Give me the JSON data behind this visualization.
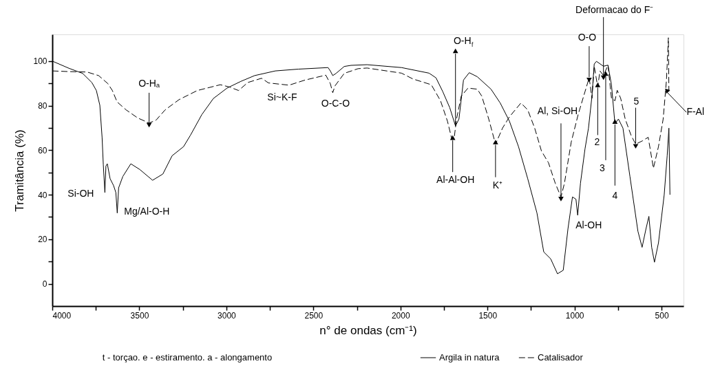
{
  "chart_data": {
    "type": "line",
    "xlabel": "n° de ondas (cm⁻¹)",
    "ylabel": "Tramitância (%)",
    "xlim": [
      4000,
      374
    ],
    "ylim": [
      -10,
      112
    ],
    "xticks": [
      4000,
      {
        "value": 3750,
        "label": null
      },
      3500,
      {
        "value": 3250,
        "label": null
      },
      3000,
      {
        "value": 2750,
        "label": null
      },
      2500,
      {
        "value": 2250,
        "label": null
      },
      2000,
      {
        "value": 1750,
        "label": null
      },
      1500,
      {
        "value": 1250,
        "label": null
      },
      1000,
      {
        "value": 750,
        "label": null
      },
      500
    ],
    "yticks": [
      0,
      {
        "value": 10,
        "label": null
      },
      20,
      {
        "value": 30,
        "label": null
      },
      40,
      {
        "value": 50,
        "label": null
      },
      60,
      {
        "value": 70,
        "label": null
      },
      80,
      {
        "value": 90,
        "label": null
      },
      100
    ],
    "grid": false,
    "legend": "bottom right",
    "marker": "none",
    "series": [
      {
        "name": "Argila in natura",
        "color": "#000000",
        "line_style": "solid",
        "x": [
          4000,
          3905,
          3826,
          3773,
          3747,
          3727,
          3714,
          3707,
          3698,
          3692,
          3684,
          3668,
          3648,
          3635,
          3627,
          3619,
          3595,
          3549,
          3497,
          3424,
          3365,
          3312,
          3246,
          3206,
          3141,
          3075,
          2996,
          2917,
          2838,
          2719,
          2587,
          2416,
          2403,
          2389,
          2370,
          2323,
          2284,
          2192,
          1994,
          1836,
          1796,
          1757,
          1717,
          1684,
          1664,
          1638,
          1605,
          1559,
          1480,
          1427,
          1374,
          1322,
          1269,
          1216,
          1177,
          1137,
          1098,
          1065,
          1038,
          1012,
          992,
          982,
          966,
          940,
          920,
          900,
          887,
          874,
          834,
          808,
          788,
          768,
          748,
          722,
          682,
          636,
          612,
          590,
          573,
          557,
          541,
          518,
          485,
          468,
          458,
          452
        ],
        "values": [
          100,
          96.8,
          94.5,
          90.4,
          86.8,
          80.2,
          65.7,
          53.4,
          41.0,
          52.9,
          53.9,
          47.2,
          44.1,
          41.0,
          31.8,
          43.1,
          48.2,
          53.9,
          51.3,
          46.5,
          49.3,
          57.5,
          61.6,
          66.8,
          76.0,
          83.2,
          87.9,
          90.9,
          93.5,
          95.6,
          96.4,
          97.1,
          95.6,
          93.5,
          94.5,
          97.6,
          98.1,
          98.4,
          97.1,
          94.6,
          92.5,
          86.3,
          79.1,
          70.9,
          74.0,
          91.5,
          94.8,
          93.0,
          87.4,
          81.2,
          73.0,
          61.6,
          47.2,
          31.8,
          14.3,
          11.2,
          4.5,
          6.1,
          24.6,
          39.0,
          38.0,
          30.8,
          45.2,
          60.6,
          69.9,
          84.3,
          98.7,
          99.9,
          97.7,
          98.2,
          89.4,
          71.9,
          74.0,
          69.9,
          48.3,
          23.6,
          16.4,
          24.6,
          30.3,
          16.4,
          9.7,
          18.4,
          40.0,
          57.5,
          69.9,
          40.0
        ]
      },
      {
        "name": "Catalisador",
        "color": "#000000",
        "line_style": "dashed",
        "x": [
          4000,
          3905,
          3800,
          3734,
          3681,
          3655,
          3628,
          3576,
          3510,
          3444,
          3404,
          3352,
          3272,
          3167,
          3035,
          2983,
          2930,
          2877,
          2798,
          2758,
          2640,
          2548,
          2429,
          2403,
          2389,
          2376,
          2323,
          2244,
          2192,
          1994,
          1929,
          1823,
          1770,
          1730,
          1704,
          1691,
          1678,
          1651,
          1612,
          1559,
          1533,
          1493,
          1454,
          1414,
          1374,
          1308,
          1269,
          1229,
          1190,
          1150,
          1111,
          1078,
          1058,
          1019,
          979,
          940,
          916,
          900,
          887,
          867,
          854,
          834,
          808,
          788,
          768,
          755,
          735,
          709,
          676,
          649,
          610,
          577,
          547,
          518,
          491,
          472,
          461,
          458
        ],
        "values": [
          95.6,
          95.3,
          95.1,
          93.5,
          89.9,
          86.8,
          81.7,
          78.1,
          74.5,
          72.2,
          73.5,
          78.1,
          82.7,
          86.8,
          89.4,
          88.4,
          86.8,
          90.4,
          92.3,
          90.2,
          89.2,
          91.5,
          93.7,
          89.9,
          85.8,
          88.9,
          94.5,
          96.6,
          96.9,
          94.6,
          92.0,
          89.4,
          82.2,
          73.0,
          64.7,
          65.8,
          74.0,
          84.3,
          87.9,
          87.4,
          84.3,
          74.0,
          62.7,
          69.9,
          75.0,
          81.2,
          78.1,
          69.9,
          59.6,
          54.4,
          45.2,
          39.0,
          45.2,
          63.7,
          76.1,
          86.3,
          92.5,
          83.3,
          97.7,
          88.4,
          95.6,
          93.5,
          98.2,
          83.3,
          82.2,
          86.9,
          83.3,
          74.0,
          66.8,
          62.7,
          64.2,
          65.8,
          51.9,
          61.6,
          74.0,
          91.5,
          110.5,
          86.3
        ]
      }
    ],
    "annotations": [
      {
        "text": "Si-OH",
        "x": 3698,
        "y": 41.0
      },
      {
        "text": "Mg/Al-O-H",
        "x": 3627,
        "y": 31.8
      },
      {
        "text": "O-Hₐ",
        "x": 3444,
        "y": 72.2
      },
      {
        "text": "Si~K-F",
        "x": 2640,
        "y": 89.2
      },
      {
        "text": "O-C-O",
        "x": 2389,
        "y": 85.8
      },
      {
        "text": "O-H$_{f}$",
        "x": 1684,
        "y": 70.9
      },
      {
        "text": "Al-Al-OH",
        "x": 1700,
        "y": 64.7
      },
      {
        "text": "K⁺",
        "x": 1454,
        "y": 62.7
      },
      {
        "text": "Al, Si-OH",
        "x": 1078,
        "y": 39.0
      },
      {
        "text": "Al-OH",
        "x": 982,
        "y": 30.8
      },
      {
        "text": "O-O",
        "x": 916,
        "y": 92.5
      },
      {
        "text": "Deformacao do F⁻",
        "x": 834,
        "y": 93.5
      },
      {
        "text": "2",
        "x": 867,
        "y": 88.4
      },
      {
        "text": "3",
        "x": 821,
        "y": 93.5
      },
      {
        "text": "4",
        "x": 768,
        "y": 71.9
      },
      {
        "text": "5",
        "x": 649,
        "y": 62.7
      },
      {
        "text": "F-Al",
        "x": 472,
        "y": 86.3
      },
      "t - torçao. e - estiramento. a - alongamento"
    ]
  }
}
